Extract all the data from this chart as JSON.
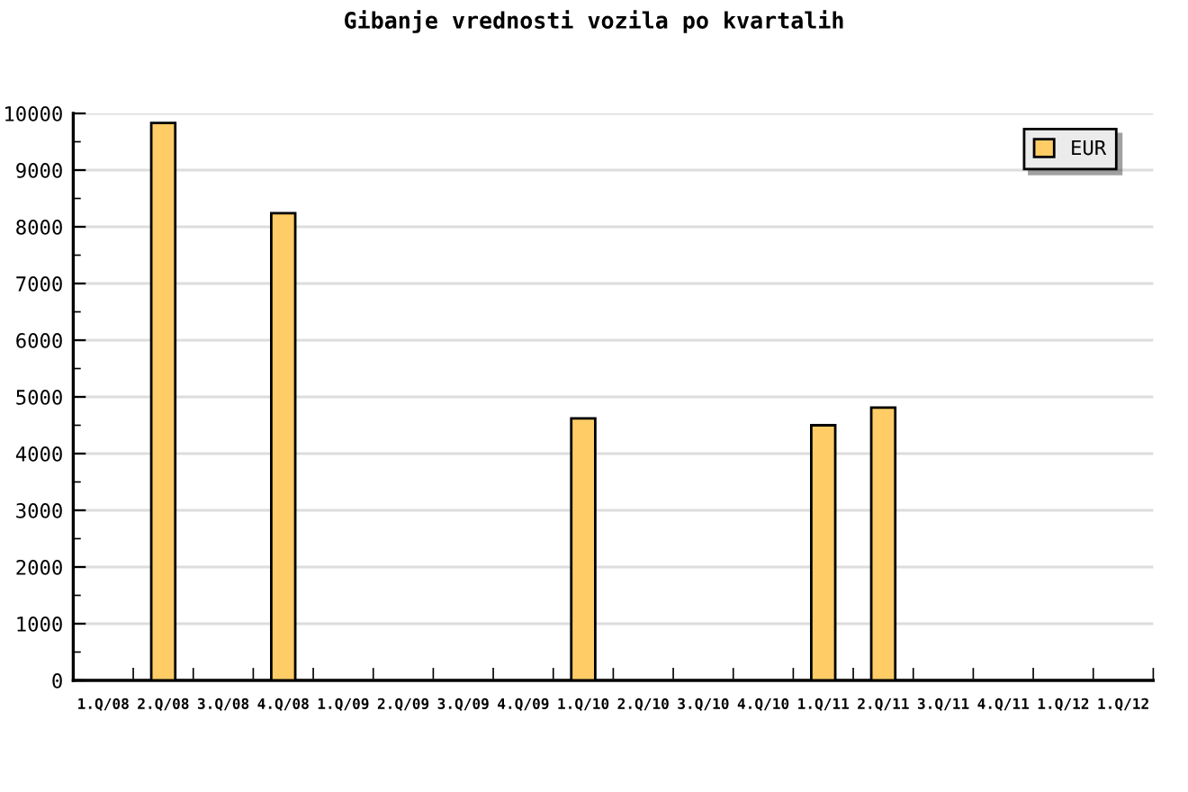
{
  "chart_data": {
    "type": "bar",
    "title": "Gibanje vrednosti vozila po kvartalih",
    "categories": [
      "1.Q/08",
      "2.Q/08",
      "3.Q/08",
      "4.Q/08",
      "1.Q/09",
      "2.Q/09",
      "3.Q/09",
      "4.Q/09",
      "1.Q/10",
      "2.Q/10",
      "3.Q/10",
      "4.Q/10",
      "1.Q/11",
      "2.Q/11",
      "3.Q/11",
      "4.Q/11",
      "1.Q/12",
      "1.Q/12"
    ],
    "series": [
      {
        "name": "EUR",
        "color": "#ffcc66",
        "values": [
          null,
          9830,
          null,
          8240,
          null,
          null,
          null,
          null,
          4620,
          null,
          null,
          null,
          4500,
          4810,
          null,
          null,
          null,
          null
        ]
      }
    ],
    "ylim": [
      0,
      10000
    ],
    "yticks": [
      0,
      {
        "value": 500,
        "label": null
      },
      1000,
      {
        "value": 1500,
        "label": null
      },
      2000,
      {
        "value": 2500,
        "label": null
      },
      3000,
      {
        "value": 3500,
        "label": null
      },
      4000,
      {
        "value": 4500,
        "label": null
      },
      5000,
      {
        "value": 5500,
        "label": null
      },
      6000,
      {
        "value": 6500,
        "label": null
      },
      7000,
      {
        "value": 7500,
        "label": null
      },
      8000,
      {
        "value": 8500,
        "label": null
      },
      9000,
      {
        "value": 9500,
        "label": null
      },
      10000
    ],
    "grid": "y",
    "legend": "top right"
  }
}
